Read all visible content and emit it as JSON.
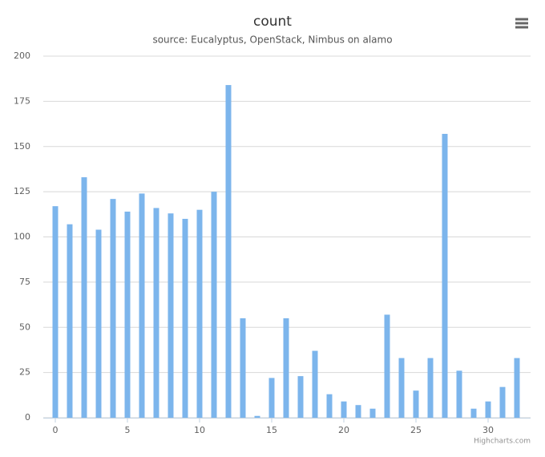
{
  "chart_data": {
    "type": "bar",
    "title": "count",
    "subtitle": "source: Eucalyptus, OpenStack, Nimbus on alamo",
    "x": [
      0,
      1,
      2,
      3,
      4,
      5,
      6,
      7,
      8,
      9,
      10,
      11,
      12,
      13,
      14,
      15,
      16,
      17,
      18,
      19,
      20,
      21,
      22,
      23,
      24,
      25,
      26,
      27,
      28,
      29,
      30,
      31,
      32
    ],
    "values": [
      117,
      107,
      133,
      104,
      121,
      114,
      124,
      116,
      113,
      110,
      115,
      125,
      184,
      55,
      1,
      22,
      55,
      23,
      37,
      13,
      9,
      7,
      5,
      57,
      33,
      15,
      33,
      157,
      26,
      5,
      9,
      17,
      33
    ],
    "color": "#7cb5ec",
    "xlim": [
      -0.5,
      32.5
    ],
    "xticks": [
      0,
      5,
      10,
      15,
      20,
      25,
      30
    ],
    "ylim": [
      0,
      200
    ],
    "yticks": [
      0,
      25,
      50,
      75,
      100,
      125,
      150,
      175,
      200
    ],
    "grid": true,
    "credits": "Highcharts.com"
  }
}
